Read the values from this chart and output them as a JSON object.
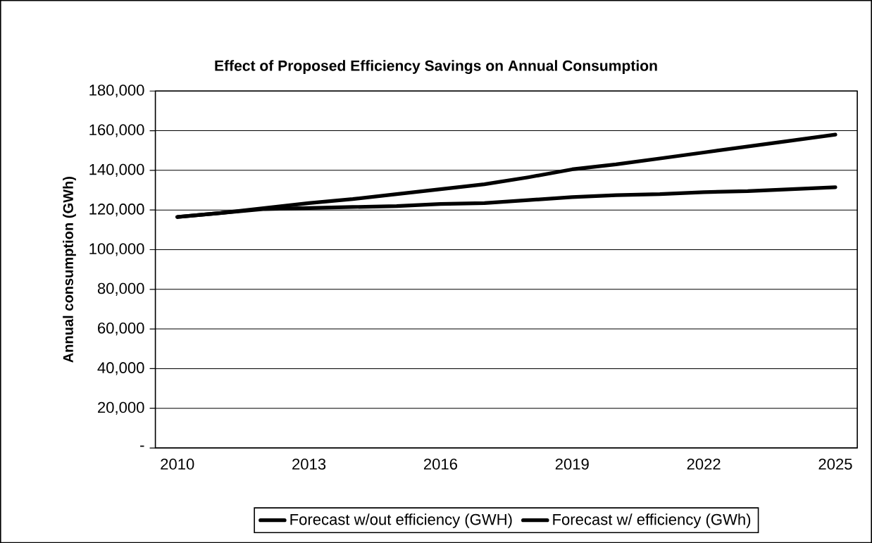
{
  "chart_data": {
    "type": "line",
    "title": "Effect of Proposed Efficiency Savings on Annual Consumption",
    "ylabel": "Annual consumption (GWh)",
    "categories": [
      "2010",
      null,
      null,
      "2013",
      null,
      null,
      "2016",
      null,
      null,
      "2019",
      null,
      null,
      "2022",
      null,
      null,
      "2025"
    ],
    "series": [
      {
        "name": "Forecast w/out efficiency (GWH)",
        "color": "#000000",
        "values": [
          116500,
          118500,
          121000,
          123500,
          125500,
          128000,
          130500,
          133000,
          136500,
          140500,
          143000,
          146000,
          149000,
          152000,
          155000,
          158000
        ]
      },
      {
        "name": "Forecast w/ efficiency (GWh)",
        "color": "#000000",
        "values": [
          116500,
          118500,
          120500,
          121000,
          121500,
          122000,
          123000,
          123500,
          125000,
          126500,
          127500,
          128000,
          129000,
          129500,
          130500,
          131500
        ]
      }
    ],
    "ylim": [
      0,
      180000
    ],
    "yticks": [
      {
        "value": 0,
        "label": "-"
      },
      {
        "value": 20000,
        "label": "20,000"
      },
      {
        "value": 40000,
        "label": "40,000"
      },
      {
        "value": 60000,
        "label": "60,000"
      },
      {
        "value": 80000,
        "label": "80,000"
      },
      {
        "value": 100000,
        "label": "100,000"
      },
      {
        "value": 120000,
        "label": "120,000"
      },
      {
        "value": 140000,
        "label": "140,000"
      },
      {
        "value": 160000,
        "label": "160,000"
      },
      {
        "value": 180000,
        "label": "180,000"
      }
    ],
    "grid": "y",
    "legend": "bottom",
    "marker": "none",
    "line_style": "solid"
  }
}
